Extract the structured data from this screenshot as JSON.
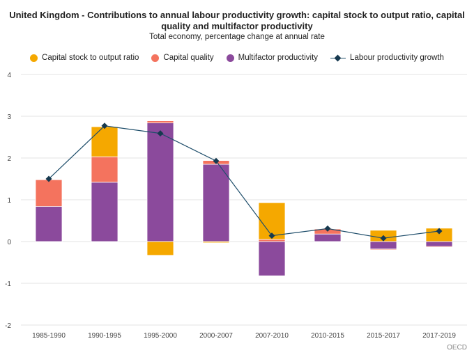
{
  "chart_data": {
    "type": "bar",
    "title_lines": [
      "United Kingdom - Contributions to annual labour productivity growth: capital stock to output ratio, capital",
      "quality and multifactor productivity"
    ],
    "subtitle": "Total economy, percentage change at annual rate",
    "categories": [
      "1985-1990",
      "1990-1995",
      "1995-2000",
      "2000-2007",
      "2007-2010",
      "2010-2015",
      "2015-2017",
      "2017-2019"
    ],
    "ylim": [
      -2,
      4
    ],
    "yticks": [
      "-2",
      "-1",
      "0",
      "1",
      "2",
      "3",
      "4"
    ],
    "series": [
      {
        "name": "Multifactor productivity",
        "kind": "bar",
        "color": "#8b4a9c",
        "values": [
          0.84,
          1.42,
          2.84,
          1.85,
          -0.82,
          0.18,
          -0.18,
          -0.12
        ]
      },
      {
        "name": "Capital quality",
        "kind": "bar",
        "color": "#f4735e",
        "values": [
          0.64,
          0.61,
          0.05,
          0.09,
          0.05,
          0.12,
          -0.02,
          -0.02
        ]
      },
      {
        "name": "Capital stock to output ratio",
        "kind": "bar",
        "color": "#f5a800",
        "values": [
          0.0,
          0.72,
          -0.33,
          -0.03,
          0.88,
          0.0,
          0.27,
          0.32
        ]
      },
      {
        "name": "Labour productivity growth",
        "kind": "line",
        "color": "#1f4e6b",
        "values": [
          1.5,
          2.77,
          2.59,
          1.93,
          0.14,
          0.31,
          0.08,
          0.25
        ]
      }
    ],
    "legend_order": [
      "Capital stock to output ratio",
      "Capital quality",
      "Multifactor productivity",
      "Labour productivity growth"
    ],
    "legend_position": "top",
    "grid": true,
    "source": "OECD"
  }
}
